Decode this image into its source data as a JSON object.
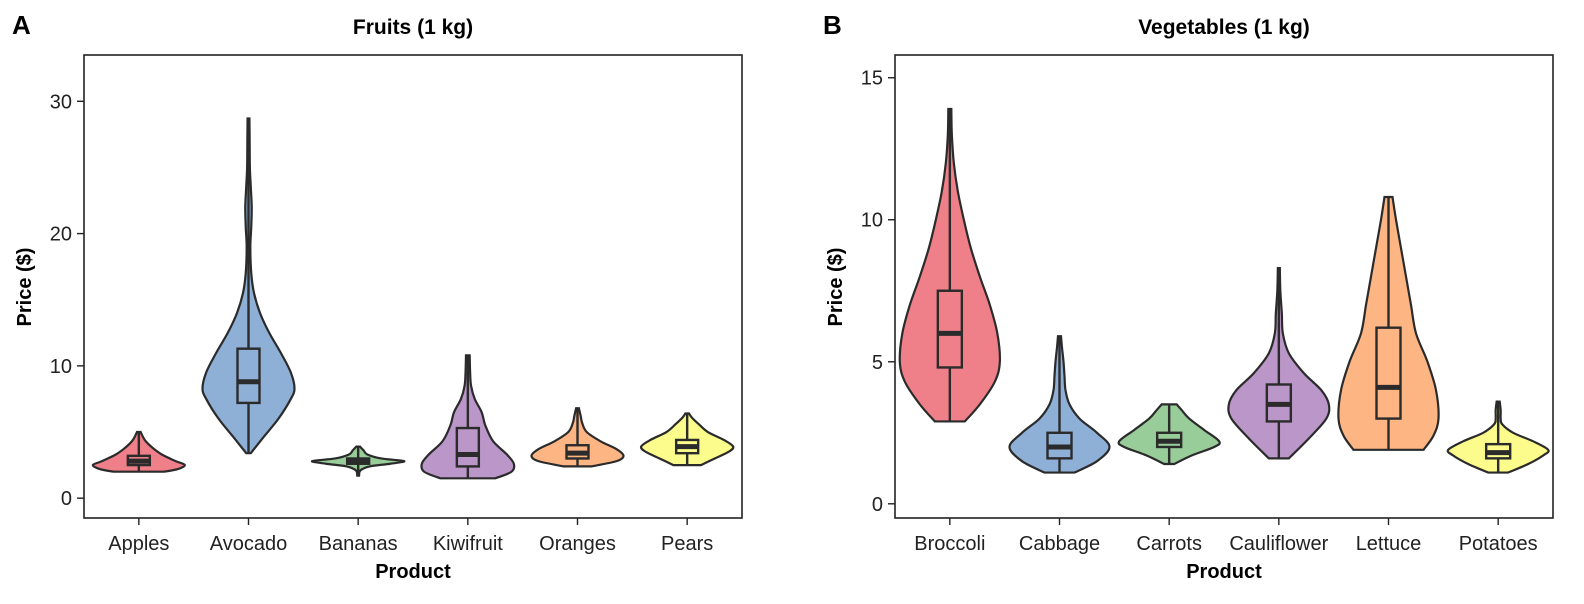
{
  "chart_data": [
    {
      "panel_label": "A",
      "type": "violin",
      "title": "Fruits (1 kg)",
      "xlabel": "Product",
      "ylabel": "Price ($)",
      "ylim": [
        -1.5,
        33.5
      ],
      "yticks": [
        0,
        10,
        20,
        30
      ],
      "grid": false,
      "categories": [
        "Apples",
        "Avocado",
        "Bananas",
        "Kiwifruit",
        "Oranges",
        "Pears"
      ],
      "colors": [
        "#ef8089",
        "#8fb0d6",
        "#98cc98",
        "#bb96c8",
        "#fdb584",
        "#fcfc8c"
      ],
      "series": [
        {
          "category": "Apples",
          "min": 2.0,
          "q1": 2.5,
          "median": 2.8,
          "q3": 3.2,
          "max": 5.0,
          "density": [
            [
              2.0,
              0.55
            ],
            [
              2.2,
              0.85
            ],
            [
              2.5,
              1.0
            ],
            [
              2.8,
              0.8
            ],
            [
              3.3,
              0.5
            ],
            [
              3.8,
              0.3
            ],
            [
              4.3,
              0.15
            ],
            [
              4.7,
              0.08
            ],
            [
              5.0,
              0.04
            ]
          ]
        },
        {
          "category": "Avocado",
          "min": 3.4,
          "q1": 7.2,
          "median": 8.8,
          "q3": 11.3,
          "max": 28.7,
          "density": [
            [
              3.4,
              0.05
            ],
            [
              4.5,
              0.3
            ],
            [
              6.0,
              0.65
            ],
            [
              7.5,
              0.92
            ],
            [
              8.3,
              1.0
            ],
            [
              9.5,
              0.92
            ],
            [
              11.0,
              0.7
            ],
            [
              12.5,
              0.45
            ],
            [
              14.0,
              0.25
            ],
            [
              15.5,
              0.12
            ],
            [
              17.0,
              0.06
            ],
            [
              19.0,
              0.04
            ],
            [
              20.5,
              0.06
            ],
            [
              22.0,
              0.07
            ],
            [
              23.5,
              0.05
            ],
            [
              25.0,
              0.03
            ],
            [
              27.0,
              0.025
            ],
            [
              28.7,
              0.02
            ]
          ]
        },
        {
          "category": "Bananas",
          "min": 1.7,
          "q1": 2.6,
          "median": 2.8,
          "q3": 3.0,
          "max": 3.9,
          "density": [
            [
              1.7,
              0.02
            ],
            [
              2.1,
              0.05
            ],
            [
              2.4,
              0.25
            ],
            [
              2.6,
              0.7
            ],
            [
              2.8,
              1.0
            ],
            [
              3.0,
              0.5
            ],
            [
              3.3,
              0.2
            ],
            [
              3.6,
              0.12
            ],
            [
              3.9,
              0.04
            ]
          ]
        },
        {
          "category": "Kiwifruit",
          "min": 1.5,
          "q1": 2.4,
          "median": 3.3,
          "q3": 5.3,
          "max": 10.8,
          "density": [
            [
              1.5,
              0.6
            ],
            [
              2.0,
              0.95
            ],
            [
              2.6,
              1.0
            ],
            [
              3.3,
              0.85
            ],
            [
              4.3,
              0.55
            ],
            [
              5.5,
              0.38
            ],
            [
              6.5,
              0.3
            ],
            [
              7.5,
              0.15
            ],
            [
              8.5,
              0.07
            ],
            [
              9.5,
              0.05
            ],
            [
              10.8,
              0.04
            ]
          ]
        },
        {
          "category": "Oranges",
          "min": 2.4,
          "q1": 3.0,
          "median": 3.4,
          "q3": 4.0,
          "max": 6.8,
          "density": [
            [
              2.4,
              0.3
            ],
            [
              2.8,
              0.85
            ],
            [
              3.2,
              1.0
            ],
            [
              3.7,
              0.85
            ],
            [
              4.3,
              0.5
            ],
            [
              5.0,
              0.2
            ],
            [
              5.7,
              0.1
            ],
            [
              6.2,
              0.07
            ],
            [
              6.8,
              0.03
            ]
          ]
        },
        {
          "category": "Pears",
          "min": 2.5,
          "q1": 3.4,
          "median": 3.9,
          "q3": 4.4,
          "max": 6.4,
          "density": [
            [
              2.5,
              0.3
            ],
            [
              3.0,
              0.6
            ],
            [
              3.5,
              0.9
            ],
            [
              3.9,
              1.0
            ],
            [
              4.4,
              0.8
            ],
            [
              5.0,
              0.45
            ],
            [
              5.6,
              0.25
            ],
            [
              6.1,
              0.1
            ],
            [
              6.4,
              0.04
            ]
          ]
        }
      ]
    },
    {
      "panel_label": "B",
      "type": "violin",
      "title": "Vegetables (1 kg)",
      "xlabel": "Product",
      "ylabel": "Price ($)",
      "ylim": [
        -0.5,
        15.8
      ],
      "yticks": [
        0,
        5,
        10,
        15
      ],
      "grid": false,
      "categories": [
        "Broccoli",
        "Cabbage",
        "Carrots",
        "Cauliflower",
        "Lettuce",
        "Potatoes"
      ],
      "colors": [
        "#ef8089",
        "#8fb0d6",
        "#98cc98",
        "#bb96c8",
        "#fdb584",
        "#fcfc8c"
      ],
      "series": [
        {
          "category": "Broccoli",
          "min": 2.9,
          "q1": 4.8,
          "median": 6.0,
          "q3": 7.5,
          "max": 13.9,
          "density": [
            [
              2.9,
              0.3
            ],
            [
              3.5,
              0.6
            ],
            [
              4.3,
              0.9
            ],
            [
              5.0,
              1.0
            ],
            [
              6.0,
              0.95
            ],
            [
              7.0,
              0.8
            ],
            [
              8.0,
              0.6
            ],
            [
              9.0,
              0.42
            ],
            [
              10.0,
              0.28
            ],
            [
              11.0,
              0.16
            ],
            [
              12.0,
              0.08
            ],
            [
              13.0,
              0.04
            ],
            [
              13.9,
              0.03
            ]
          ]
        },
        {
          "category": "Cabbage",
          "min": 1.1,
          "q1": 1.6,
          "median": 2.0,
          "q3": 2.5,
          "max": 5.9,
          "density": [
            [
              1.1,
              0.3
            ],
            [
              1.5,
              0.75
            ],
            [
              2.0,
              1.0
            ],
            [
              2.5,
              0.75
            ],
            [
              3.0,
              0.4
            ],
            [
              3.5,
              0.2
            ],
            [
              4.0,
              0.12
            ],
            [
              4.5,
              0.1
            ],
            [
              5.0,
              0.08
            ],
            [
              5.5,
              0.05
            ],
            [
              5.9,
              0.03
            ]
          ]
        },
        {
          "category": "Carrots",
          "min": 1.4,
          "q1": 2.0,
          "median": 2.2,
          "q3": 2.5,
          "max": 3.5,
          "density": [
            [
              1.4,
              0.1
            ],
            [
              1.7,
              0.45
            ],
            [
              2.0,
              0.9
            ],
            [
              2.2,
              1.0
            ],
            [
              2.6,
              0.7
            ],
            [
              3.0,
              0.4
            ],
            [
              3.3,
              0.25
            ],
            [
              3.5,
              0.15
            ]
          ]
        },
        {
          "category": "Cauliflower",
          "min": 1.6,
          "q1": 2.9,
          "median": 3.5,
          "q3": 4.2,
          "max": 8.3,
          "density": [
            [
              1.6,
              0.2
            ],
            [
              2.3,
              0.6
            ],
            [
              3.0,
              0.95
            ],
            [
              3.5,
              1.0
            ],
            [
              4.0,
              0.85
            ],
            [
              4.6,
              0.5
            ],
            [
              5.3,
              0.2
            ],
            [
              6.0,
              0.08
            ],
            [
              6.7,
              0.06
            ],
            [
              7.5,
              0.03
            ],
            [
              8.3,
              0.02
            ]
          ]
        },
        {
          "category": "Lettuce",
          "min": 1.9,
          "q1": 3.0,
          "median": 4.1,
          "q3": 6.2,
          "max": 10.8,
          "density": [
            [
              1.9,
              0.7
            ],
            [
              2.4,
              0.9
            ],
            [
              3.0,
              1.0
            ],
            [
              4.0,
              0.95
            ],
            [
              5.0,
              0.78
            ],
            [
              6.0,
              0.55
            ],
            [
              7.0,
              0.45
            ],
            [
              8.0,
              0.35
            ],
            [
              9.0,
              0.25
            ],
            [
              10.0,
              0.15
            ],
            [
              10.8,
              0.08
            ]
          ]
        },
        {
          "category": "Potatoes",
          "min": 1.1,
          "q1": 1.6,
          "median": 1.8,
          "q3": 2.1,
          "max": 3.6,
          "density": [
            [
              1.1,
              0.2
            ],
            [
              1.4,
              0.6
            ],
            [
              1.7,
              0.9
            ],
            [
              1.9,
              1.0
            ],
            [
              2.2,
              0.7
            ],
            [
              2.5,
              0.3
            ],
            [
              2.8,
              0.08
            ],
            [
              3.0,
              0.05
            ],
            [
              3.3,
              0.05
            ],
            [
              3.6,
              0.03
            ]
          ]
        }
      ]
    }
  ]
}
